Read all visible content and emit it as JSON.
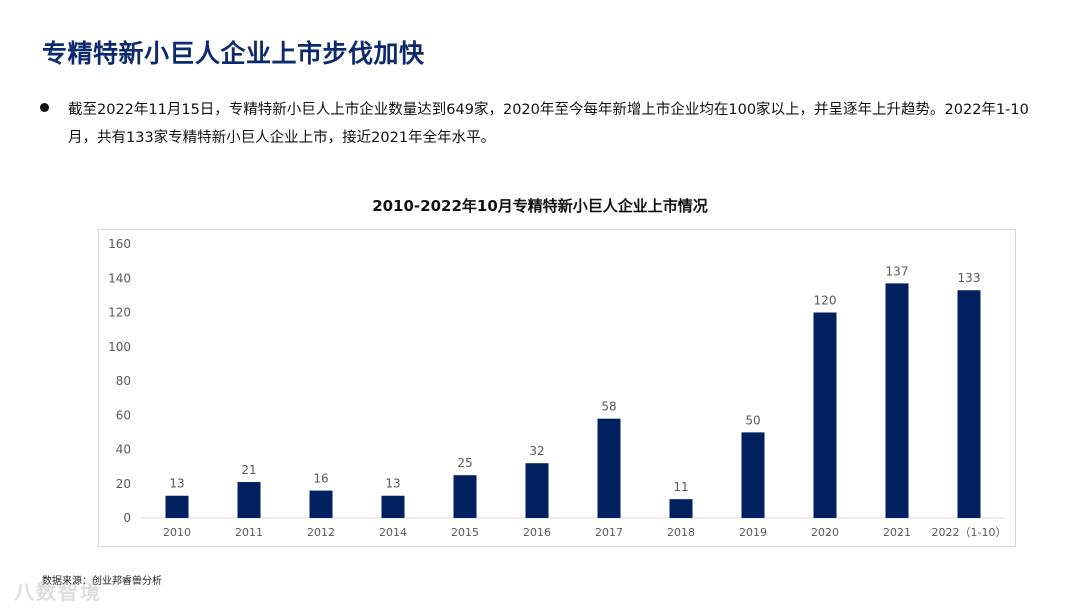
{
  "page": {
    "title": "专精特新小巨人企业上市步伐加快",
    "bullet": "截至2022年11月15日，专精特新小巨人上市企业数量达到649家，2020年至今每年新增上市企业均在100家以上，并呈逐年上升趋势。2022年1-10月，共有133家专精特新小巨人企业上市，接近2021年全年水平。",
    "source": "数据来源：创业邦睿兽分析",
    "watermark": "八数智境"
  },
  "colors": {
    "bar": "#002060",
    "title": "#0d2a6e",
    "axis": "#d9d9d9",
    "text": "#595959"
  },
  "chart_data": {
    "type": "bar",
    "title": "2010-2022年10月专精特新小巨人企业上市情况",
    "categories": [
      "2010",
      "2011",
      "2012",
      "2014",
      "2015",
      "2016",
      "2017",
      "2018",
      "2019",
      "2020",
      "2021",
      "2022（1-10）"
    ],
    "values": [
      13,
      21,
      16,
      13,
      25,
      32,
      58,
      11,
      50,
      120,
      137,
      133
    ],
    "ylim": [
      0,
      160
    ],
    "yticks": [
      0,
      20,
      40,
      60,
      80,
      100,
      120,
      140,
      160
    ],
    "xlabel": "",
    "ylabel": "",
    "grid": false,
    "legend": "none"
  }
}
